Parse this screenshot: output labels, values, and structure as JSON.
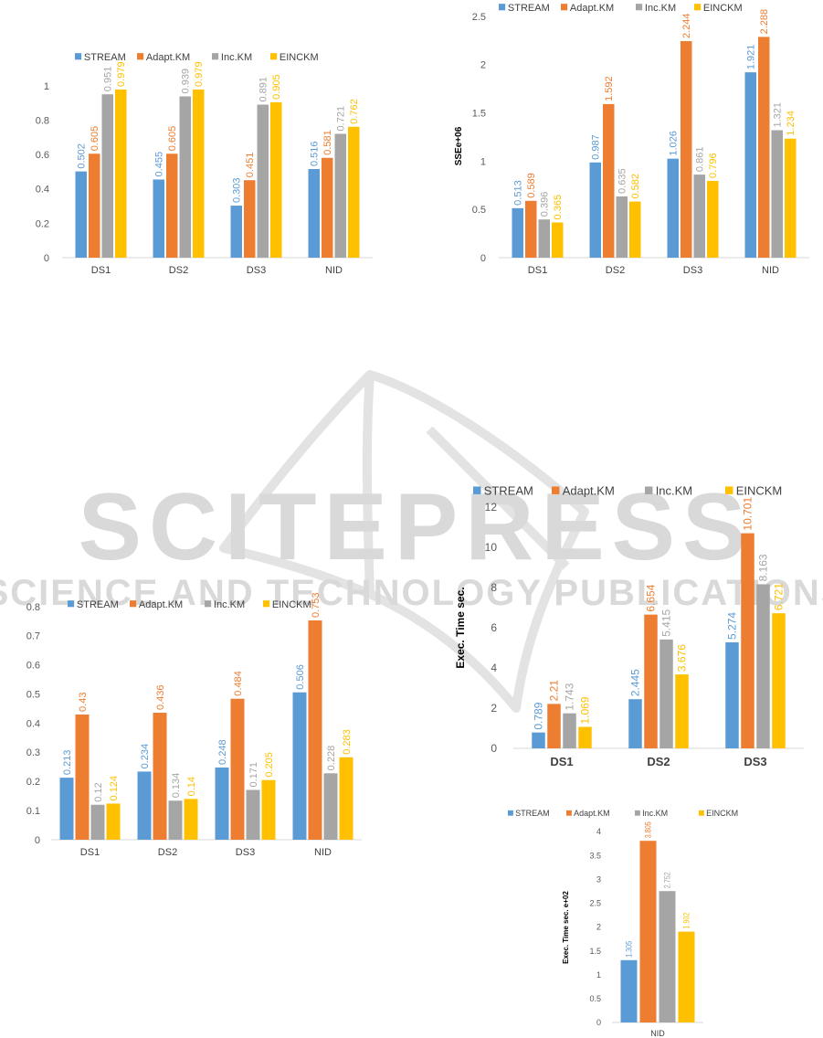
{
  "watermark": {
    "title": "SCITEPRESS",
    "subtitle": "SCIENCE AND TECHNOLOGY PUBLICATIONS"
  },
  "colors": {
    "series": [
      "#5B9BD5",
      "#ED7D31",
      "#A5A5A5",
      "#FFC000"
    ],
    "axis": "#d9d9d9",
    "watermark": "#d9d9d9"
  },
  "chart_data": [
    {
      "type": "bar",
      "title": "",
      "xlabel": "",
      "ylabel": "",
      "categories": [
        "DS1",
        "DS2",
        "DS3",
        "NID"
      ],
      "ylim": [
        0,
        1
      ],
      "yticks": [
        "0",
        "0.2",
        "0.4",
        "0.6",
        "0.8",
        "1"
      ],
      "grid": false,
      "legend": "top",
      "series": [
        {
          "name": "STREAM",
          "values": [
            0.502,
            0.455,
            0.303,
            0.516
          ],
          "labels": [
            "0.502",
            "0.455",
            "0.303",
            "0.516"
          ]
        },
        {
          "name": "Adapt.KM",
          "values": [
            0.605,
            0.605,
            0.451,
            0.581
          ],
          "labels": [
            "0.605",
            "0.605",
            "0.451",
            "0.581"
          ]
        },
        {
          "name": "Inc.KM",
          "values": [
            0.951,
            0.939,
            0.891,
            0.721
          ],
          "labels": [
            "0.951",
            "0.939",
            "0.891",
            "0.721"
          ]
        },
        {
          "name": "EINCKM",
          "values": [
            0.979,
            0.979,
            0.905,
            0.762
          ],
          "labels": [
            "0.979",
            "0.979",
            "0.905",
            "0.762"
          ]
        }
      ]
    },
    {
      "type": "bar",
      "title": "",
      "xlabel": "",
      "ylabel": "SSEe+06",
      "categories": [
        "DS1",
        "DS2",
        "DS3",
        "NID"
      ],
      "ylim": [
        0,
        2.5
      ],
      "yticks": [
        "0",
        "0.5",
        "1",
        "1.5",
        "2",
        "2.5"
      ],
      "grid": false,
      "legend": "top",
      "series": [
        {
          "name": "STREAM",
          "values": [
            0.513,
            0.987,
            1.026,
            1.921
          ],
          "labels": [
            "0.513",
            "0.987",
            "1.026",
            "1.921"
          ]
        },
        {
          "name": "Adapt.KM",
          "values": [
            0.589,
            1.592,
            2.244,
            2.288
          ],
          "labels": [
            "0.589",
            "1.592",
            "2.244",
            "2.288"
          ]
        },
        {
          "name": "Inc.KM",
          "values": [
            0.396,
            0.635,
            0.861,
            1.321
          ],
          "labels": [
            "0.396",
            "0.635",
            "0.861",
            "1.321"
          ]
        },
        {
          "name": "EINCKM",
          "values": [
            0.365,
            0.582,
            0.796,
            1.234
          ],
          "labels": [
            "0.365",
            "0.582",
            "0.796",
            "1.234"
          ]
        }
      ]
    },
    {
      "type": "bar",
      "title": "",
      "xlabel": "",
      "ylabel": "",
      "categories": [
        "DS1",
        "DS2",
        "DS3",
        "NID"
      ],
      "ylim": [
        0,
        0.8
      ],
      "yticks": [
        "0",
        "0.1",
        "0.2",
        "0.3",
        "0.4",
        "0.5",
        "0.6",
        "0.7",
        "0.8"
      ],
      "grid": false,
      "legend": "top",
      "series": [
        {
          "name": "STREAM",
          "values": [
            0.213,
            0.234,
            0.248,
            0.506
          ],
          "labels": [
            "0.213",
            "0.234",
            "0.248",
            "0.506"
          ]
        },
        {
          "name": "Adapt.KM",
          "values": [
            0.43,
            0.436,
            0.484,
            0.753
          ],
          "labels": [
            "0.43",
            "0.436",
            "0.484",
            "0.753"
          ]
        },
        {
          "name": "Inc.KM",
          "values": [
            0.12,
            0.134,
            0.171,
            0.228
          ],
          "labels": [
            "0.12",
            "0.134",
            "0.171",
            "0.228"
          ]
        },
        {
          "name": "EINCKM",
          "values": [
            0.124,
            0.14,
            0.205,
            0.283
          ],
          "labels": [
            "0.124",
            "0.14",
            "0.205",
            "0.283"
          ]
        }
      ]
    },
    {
      "type": "bar",
      "title": "",
      "xlabel": "",
      "ylabel": "Exec. Time sec.",
      "categories": [
        "DS1",
        "DS2",
        "DS3"
      ],
      "ylim": [
        0,
        12
      ],
      "yticks": [
        "0",
        "2",
        "4",
        "6",
        "8",
        "10",
        "12"
      ],
      "grid": false,
      "legend": "top",
      "series": [
        {
          "name": "STREAM",
          "values": [
            0.789,
            2.445,
            5.274
          ],
          "labels": [
            "0.789",
            "2.445",
            "5.274"
          ]
        },
        {
          "name": "Adapt.KM",
          "values": [
            2.21,
            6.654,
            10.701
          ],
          "labels": [
            "2.21",
            "6.654",
            "10.701"
          ]
        },
        {
          "name": "Inc.KM",
          "values": [
            1.743,
            5.415,
            8.163
          ],
          "labels": [
            "1.743",
            "5.415",
            "8.163"
          ]
        },
        {
          "name": "EINCKM",
          "values": [
            1.069,
            3.676,
            6.721
          ],
          "labels": [
            "1.069",
            "3.676",
            "6.721"
          ]
        }
      ]
    },
    {
      "type": "bar",
      "title": "",
      "xlabel": "",
      "ylabel": "Exec. Time sec. e+02",
      "categories": [
        "NID"
      ],
      "ylim": [
        0,
        4
      ],
      "yticks": [
        "0",
        "0.5",
        "1",
        "1.5",
        "2",
        "2.5",
        "3",
        "3.5",
        "4"
      ],
      "grid": false,
      "legend": "top",
      "series": [
        {
          "name": "STREAM",
          "values": [
            1.305
          ],
          "labels": [
            "1.305"
          ]
        },
        {
          "name": "Adapt.KM",
          "values": [
            3.805
          ],
          "labels": [
            "3.805"
          ]
        },
        {
          "name": "Inc.KM",
          "values": [
            2.752
          ],
          "labels": [
            "2.752"
          ]
        },
        {
          "name": "EINCKM",
          "values": [
            1.902
          ],
          "labels": [
            "1.902"
          ]
        }
      ]
    }
  ]
}
